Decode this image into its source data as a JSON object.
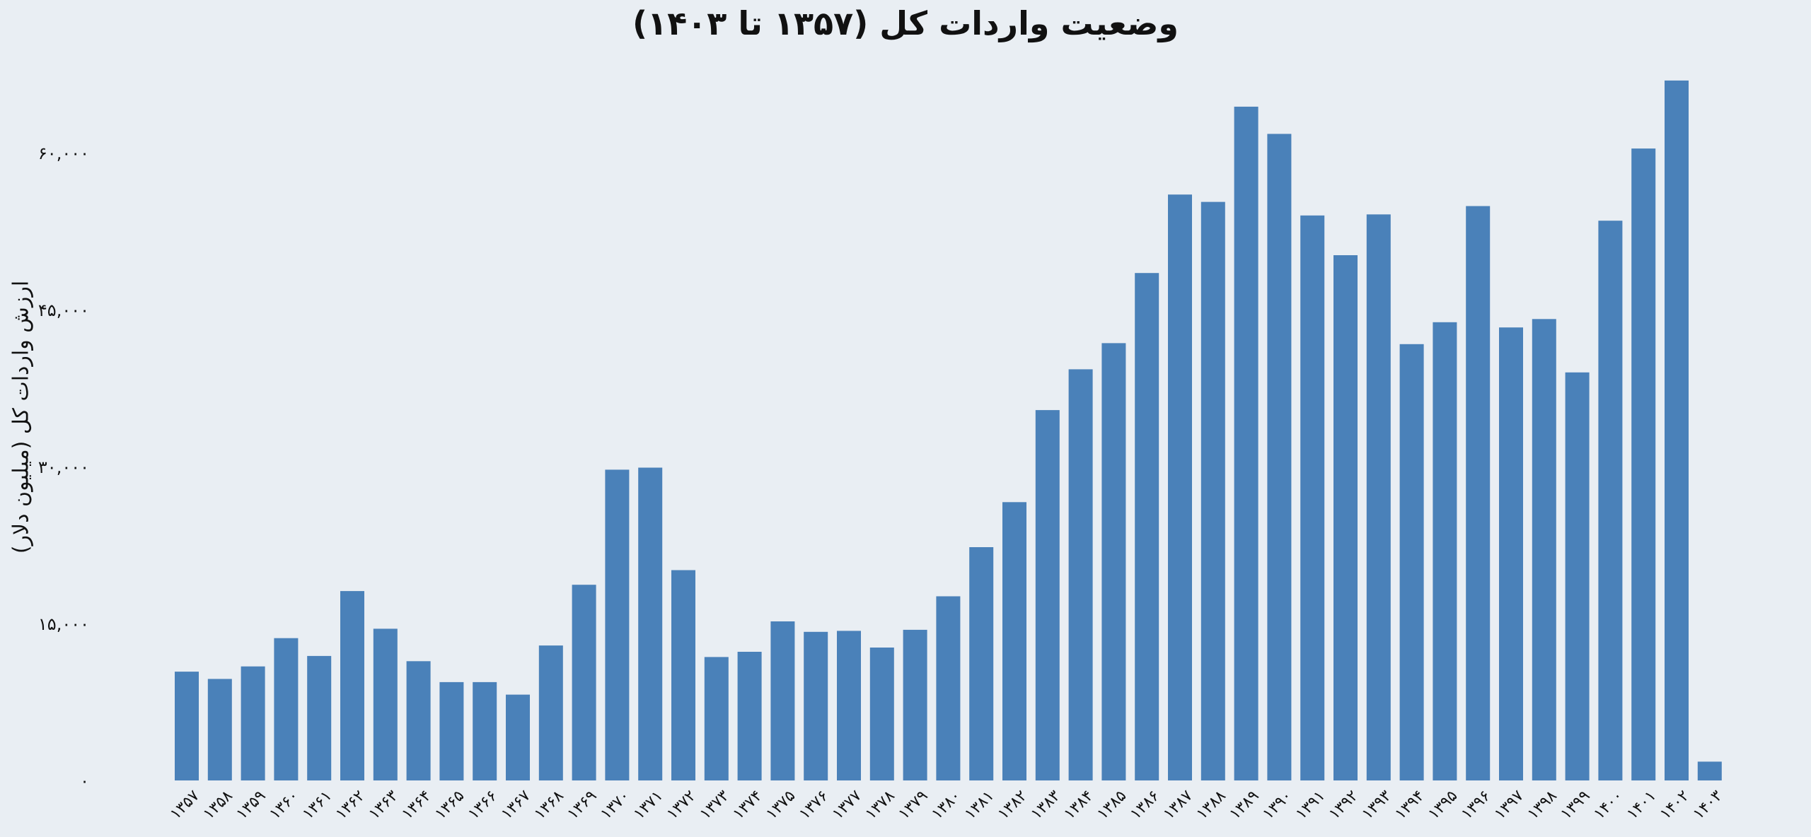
{
  "chart_data": {
    "type": "bar",
    "title": "وضعیت واردات کل (۱۳۵۷ تا ۱۴۰۳)",
    "xlabel": "",
    "ylabel": "ارزش واردات کل (میلیون دلار)",
    "ylim": [
      0,
      67000
    ],
    "yticks": [
      0,
      15000,
      30000,
      45000,
      60000
    ],
    "ytick_labels": [
      "۰",
      "۱۵,۰۰۰",
      "۳۰,۰۰۰",
      "۴۵,۰۰۰",
      "۶۰,۰۰۰"
    ],
    "grid": false,
    "bar_color": "#4a81b9",
    "categories": [
      "۱۳۵۷",
      "۱۳۵۸",
      "۱۳۵۹",
      "۱۳۶۰",
      "۱۳۶۱",
      "۱۳۶۲",
      "۱۳۶۳",
      "۱۳۶۴",
      "۱۳۶۵",
      "۱۳۶۶",
      "۱۳۶۷",
      "۱۳۶۸",
      "۱۳۶۹",
      "۱۳۷۰",
      "۱۳۷۱",
      "۱۳۷۲",
      "۱۳۷۳",
      "۱۳۷۴",
      "۱۳۷۵",
      "۱۳۷۶",
      "۱۳۷۷",
      "۱۳۷۸",
      "۱۳۷۹",
      "۱۳۸۰",
      "۱۳۸۱",
      "۱۳۸۲",
      "۱۳۸۳",
      "۱۳۸۴",
      "۱۳۸۵",
      "۱۳۸۶",
      "۱۳۸۷",
      "۱۳۸۸",
      "۱۳۸۹",
      "۱۳۹۰",
      "۱۳۹۱",
      "۱۳۹۲",
      "۱۳۹۳",
      "۱۳۹۴",
      "۱۳۹۵",
      "۱۳۹۶",
      "۱۳۹۷",
      "۱۳۹۸",
      "۱۳۹۹",
      "۱۴۰۰",
      "۱۴۰۱",
      "۱۴۰۲",
      "۱۴۰۳"
    ],
    "values": [
      10400,
      9700,
      10900,
      13600,
      11900,
      18100,
      14500,
      11400,
      9400,
      9400,
      8200,
      12900,
      18700,
      29700,
      29900,
      20100,
      11800,
      12300,
      15200,
      14200,
      14300,
      12700,
      14400,
      17600,
      22300,
      26600,
      35400,
      39300,
      41800,
      48500,
      56000,
      55300,
      64400,
      61800,
      54000,
      50200,
      54100,
      41700,
      43800,
      54900,
      43300,
      44100,
      39000,
      53500,
      60400,
      66900,
      1800
    ]
  }
}
